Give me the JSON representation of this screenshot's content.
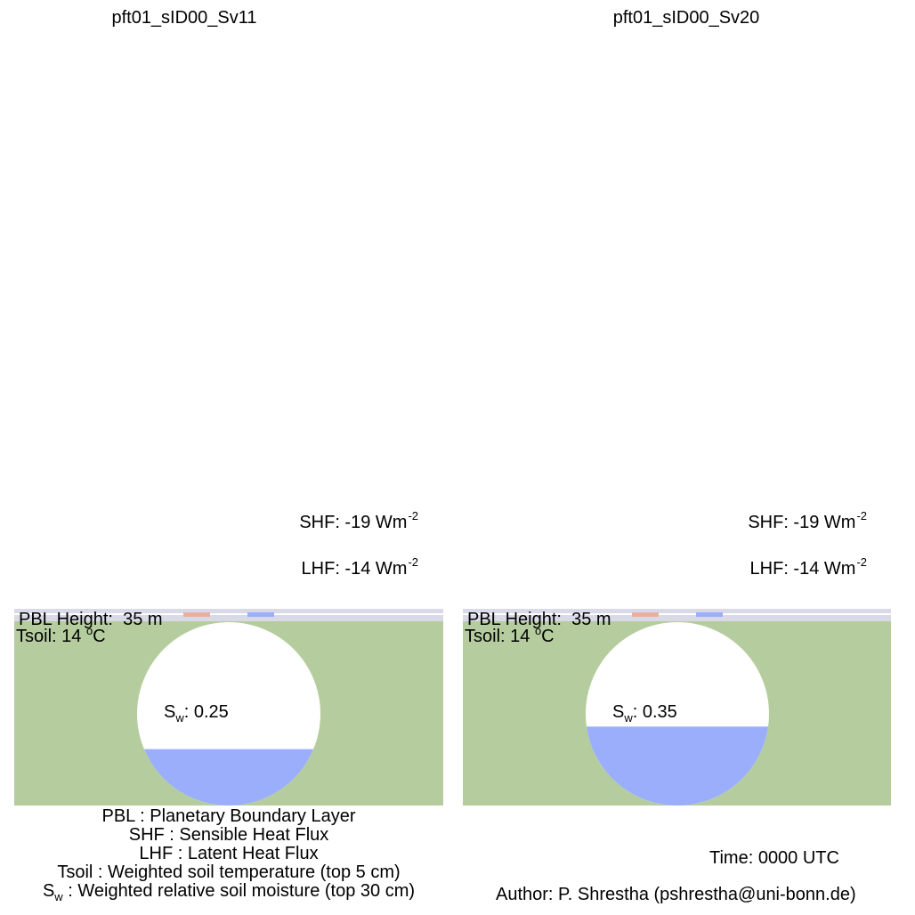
{
  "panels": [
    {
      "title": "pft01_sID00_Sv11",
      "shf_label": "SHF: -19 Wm",
      "lhf_label": "LHF: -14 Wm",
      "flux_exponent": "-2",
      "pbl_label": "PBL Height:",
      "pbl_value": "35 m",
      "tsoil_label": "Tsoil: 14",
      "tsoil_degree": "o",
      "tsoil_unit": "C",
      "sw_symbol": "S",
      "sw_sub": "w",
      "sw_value": ": 0.25",
      "soil_moisture_fraction": 0.25
    },
    {
      "title": "pft01_sID00_Sv20",
      "shf_label": "SHF: -19 Wm",
      "lhf_label": "LHF: -14 Wm",
      "flux_exponent": "-2",
      "pbl_label": "PBL Height:",
      "pbl_value": "35 m",
      "tsoil_label": "Tsoil: 14",
      "tsoil_degree": "o",
      "tsoil_unit": "C",
      "sw_symbol": "S",
      "sw_sub": "w",
      "sw_value": ": 0.35",
      "soil_moisture_fraction": 0.35
    }
  ],
  "legend": {
    "pbl": "PBL : Planetary Boundary Layer",
    "shf": "SHF : Sensible Heat Flux",
    "lhf": "LHF : Latent Heat Flux",
    "tsoil": "Tsoil : Weighted soil temperature (top 5 cm)",
    "sw_symbol": "S",
    "sw_sub": "w",
    "sw_text": " : Weighted relative soil moisture (top 30 cm)"
  },
  "footer": {
    "time": "Time: 0000 UTC",
    "author": "Author: P. Shrestha (pshrestha@uni-bonn.de)"
  },
  "colors": {
    "soil": "#b5cd9e",
    "atmosphere": "#d9d9e8",
    "water": "#9aaefc",
    "shf_bar": "#e8b0a0",
    "lhf_bar": "#9aaefc"
  }
}
